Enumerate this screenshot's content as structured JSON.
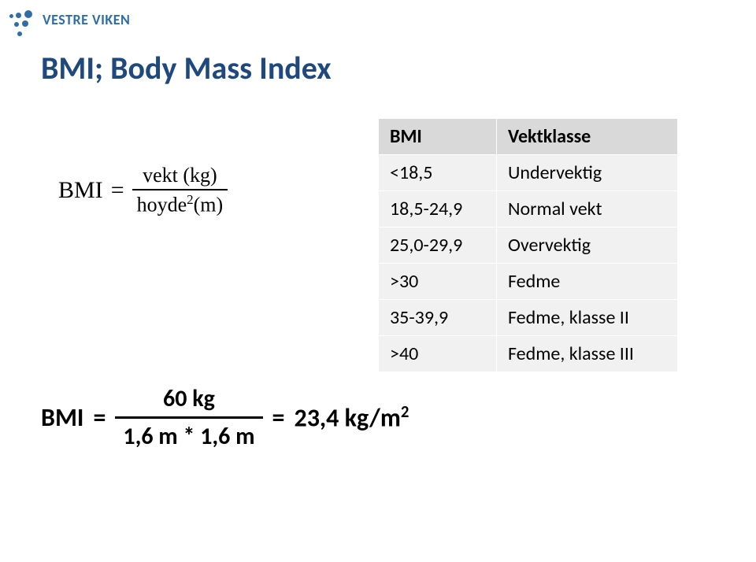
{
  "logo": {
    "text": "VESTRE VIKEN",
    "color": "#2f6ea5"
  },
  "title": {
    "text": "BMI; Body Mass Index",
    "color": "#1f497d",
    "fontsize": 40
  },
  "formula_def": {
    "lhs": "BMI",
    "numerator": "vekt (kg)",
    "denominator_base": "hoyde",
    "denominator_exp": "2",
    "denominator_unit": "(m)"
  },
  "table": {
    "header_bg": "#d9d9d9",
    "row_bg": "#f1f1f1",
    "border_color": "#ffffff",
    "fontsize": 24,
    "columns": [
      "BMI",
      "Vektklasse"
    ],
    "rows": [
      [
        "<18,5",
        "Undervektig"
      ],
      [
        "18,5-24,9",
        "Normal vekt"
      ],
      [
        "25,0-29,9",
        "Overvektig"
      ],
      [
        ">30",
        "Fedme"
      ],
      [
        "35-39,9",
        "Fedme, klasse II"
      ],
      [
        ">40",
        "Fedme, klasse III"
      ]
    ]
  },
  "formula_example": {
    "lhs": "BMI",
    "numerator": "60 kg",
    "denominator": "1,6 m * 1,6 m",
    "result_value": "23,4 kg/m",
    "result_exp": "2"
  },
  "colors": {
    "background": "#ffffff",
    "text_black": "#000000"
  }
}
